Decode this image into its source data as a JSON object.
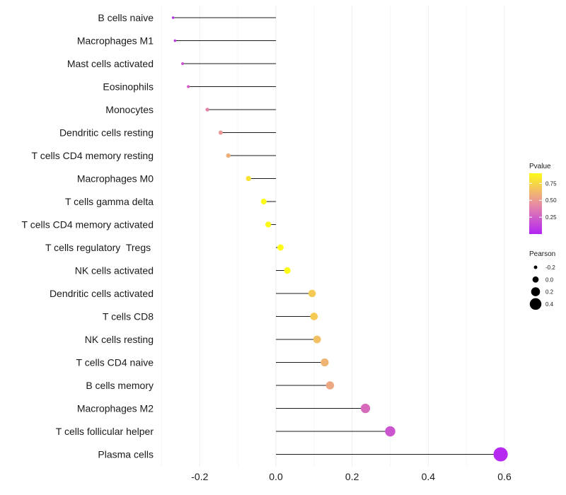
{
  "chart_data": {
    "type": "lollipop",
    "categories": [
      "B cells naive",
      "Macrophages M1",
      "Mast cells activated",
      "Eosinophils",
      "Monocytes",
      "Dendritic cells resting",
      "T cells CD4 memory resting",
      "Macrophages M0",
      "T cells gamma delta",
      "T cells CD4 memory activated",
      "T cells regulatory  Tregs ",
      "NK cells activated",
      "Dendritic cells activated",
      "T cells CD8",
      "NK cells resting",
      "T cells CD4 naive",
      "B cells memory",
      "Macrophages M2",
      "T cells follicular helper",
      "Plasma cells"
    ],
    "pearson": [
      -0.27,
      -0.265,
      -0.245,
      -0.23,
      -0.18,
      -0.145,
      -0.125,
      -0.072,
      -0.032,
      -0.02,
      0.012,
      0.03,
      0.095,
      0.1,
      0.108,
      0.128,
      0.142,
      0.235,
      0.3,
      0.59
    ],
    "pvalue": [
      0.05,
      0.1,
      0.2,
      0.25,
      0.4,
      0.48,
      0.58,
      0.8,
      0.92,
      0.95,
      0.95,
      0.9,
      0.7,
      0.7,
      0.65,
      0.6,
      0.55,
      0.3,
      0.2,
      0.02
    ],
    "xlim": [
      -0.3,
      0.62
    ],
    "xticks": [
      -0.2,
      0.0,
      0.2,
      0.4,
      0.6
    ],
    "xtick_labels": [
      "-0.2",
      "0.0",
      "0.2",
      "0.4",
      "0.6"
    ],
    "xlabel": "",
    "ylabel": "",
    "color_legend": {
      "title": "Pvalue",
      "range": [
        0.0,
        0.9
      ],
      "ticks": [
        0.25,
        0.5,
        0.75
      ],
      "tick_labels": [
        "0.25",
        "0.50",
        "0.75"
      ],
      "colors": [
        "#b324f5",
        "#e88fa0",
        "#fefa18"
      ]
    },
    "size_legend": {
      "title": "Pearson",
      "values": [
        -0.2,
        0.0,
        0.2,
        0.4
      ],
      "labels": [
        "-0.2",
        "0.0",
        "0.2",
        "0.4"
      ]
    },
    "grid": true
  }
}
